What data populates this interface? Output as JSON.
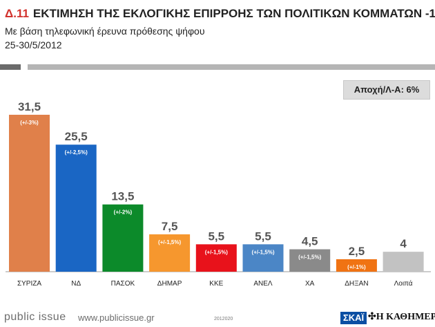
{
  "header": {
    "code": "Δ.11",
    "title": "ΕΚΤΙΜΗΣΗ ΤΗΣ ΕΚΛΟΓΙΚΗΣ ΕΠΙΡΡΟΗΣ ΤΩΝ ΠΟΛΙΤΙΚΩΝ ΚΟΜΜΑΤΩΝ -1",
    "subtitle": "Με βάση τηλεφωνική έρευνα πρόθεσης ψήφου",
    "date": "25-30/5/2012"
  },
  "abstention_label": "Αποχή/Λ-Α: 6%",
  "chart_data": {
    "type": "bar",
    "title": "ΕΚΤΙΜΗΣΗ ΤΗΣ ΕΚΛΟΓΙΚΗΣ ΕΠΙΡΡΟΗΣ ΤΩΝ ΠΟΛΙΤΙΚΩΝ ΚΟΜΜΑΤΩΝ -1",
    "ylim": [
      0,
      31.5
    ],
    "categories": [
      "ΣΥΡΙΖΑ",
      "ΝΔ",
      "ΠΑΣΟΚ",
      "ΔΗΜΑΡ",
      "ΚΚΕ",
      "ΑΝΕΛ",
      "ΧΑ",
      "ΔΗΞΑΝ",
      "Λοιπά"
    ],
    "values": [
      31.5,
      25.5,
      13.5,
      7.5,
      5.5,
      5.5,
      4.5,
      2.5,
      4
    ],
    "value_labels": [
      "31,5",
      "25,5",
      "13,5",
      "7,5",
      "5,5",
      "5,5",
      "4,5",
      "2,5",
      "4"
    ],
    "margins": [
      "(+/-3%)",
      "(+/-2,5%)",
      "(+/-2%)",
      "(+/-1,5%)",
      "(+/-1,5%)",
      "(+/-1,5%)",
      "(+/-1,5%)",
      "(+/-1%)",
      ""
    ],
    "colors": [
      "#e0804a",
      "#1a66c4",
      "#0c8a2a",
      "#f6972e",
      "#e8121b",
      "#4b86c6",
      "#8a8a8a",
      "#f07313",
      "#c2c2c2"
    ]
  },
  "footer": {
    "brand": "public issue",
    "url": "www.publicissue.gr",
    "code": "2012020",
    "skai": "ΣΚΑΪ",
    "kathimerini": "Η ΚΑΘΗΜΕΡΙΝΗ"
  }
}
